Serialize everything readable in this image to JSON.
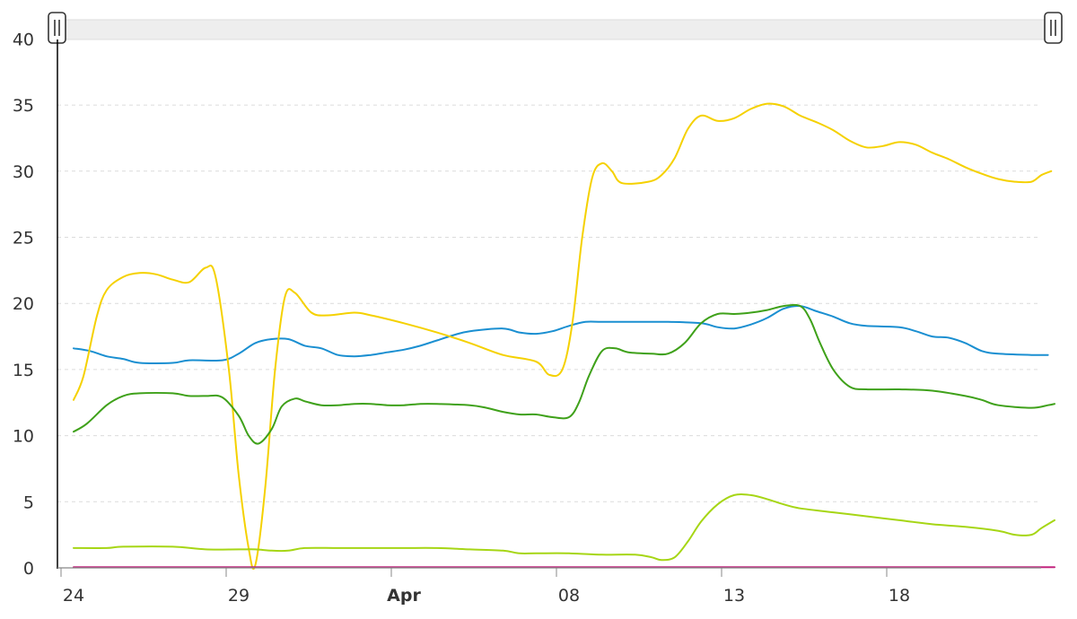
{
  "chart_data": {
    "type": "line",
    "ylim": [
      0,
      40
    ],
    "y_ticks": [
      "0",
      "5",
      "10",
      "15",
      "20",
      "25",
      "30",
      "35",
      "40"
    ],
    "x_domain_days": [
      "Mar 24",
      "Apr 22"
    ],
    "x_ticks": [
      {
        "label": "24",
        "day": 0,
        "bold": false
      },
      {
        "label": "29",
        "day": 5,
        "bold": false
      },
      {
        "label": "Apr",
        "day": 10,
        "bold": true
      },
      {
        "label": "08",
        "day": 15,
        "bold": false
      },
      {
        "label": "13",
        "day": 20,
        "bold": false
      },
      {
        "label": "18",
        "day": 25,
        "bold": false
      }
    ],
    "grid": true,
    "colors": {
      "blue": "#1a8fd1",
      "yellow": "#f5d100",
      "green": "#3fa11a",
      "lime": "#a6d615",
      "magenta": "#c2257e"
    },
    "series": [
      {
        "color": "#1a8fd1",
        "points": [
          [
            0,
            16.6
          ],
          [
            0.5,
            16.4
          ],
          [
            1,
            16
          ],
          [
            1.5,
            15.8
          ],
          [
            2,
            15.5
          ],
          [
            3,
            15.5
          ],
          [
            3.5,
            15.7
          ],
          [
            4.5,
            15.7
          ],
          [
            5,
            16.2
          ],
          [
            5.5,
            17
          ],
          [
            6,
            17.3
          ],
          [
            6.5,
            17.3
          ],
          [
            7,
            16.8
          ],
          [
            7.5,
            16.6
          ],
          [
            8,
            16.1
          ],
          [
            8.5,
            16
          ],
          [
            9,
            16.1
          ],
          [
            9.5,
            16.3
          ],
          [
            10,
            16.5
          ],
          [
            10.5,
            16.8
          ],
          [
            11,
            17.2
          ],
          [
            11.5,
            17.6
          ],
          [
            12,
            17.9
          ],
          [
            13,
            18.1
          ],
          [
            13.5,
            17.8
          ],
          [
            14,
            17.7
          ],
          [
            14.5,
            17.9
          ],
          [
            15,
            18.3
          ],
          [
            15.5,
            18.6
          ],
          [
            16,
            18.6
          ],
          [
            17,
            18.6
          ],
          [
            18,
            18.6
          ],
          [
            19,
            18.5
          ],
          [
            19.5,
            18.2
          ],
          [
            20,
            18.1
          ],
          [
            20.5,
            18.4
          ],
          [
            21,
            18.9
          ],
          [
            21.5,
            19.6
          ],
          [
            22,
            19.8
          ],
          [
            22.5,
            19.4
          ],
          [
            23,
            19
          ],
          [
            23.5,
            18.5
          ],
          [
            24,
            18.3
          ],
          [
            25,
            18.2
          ],
          [
            25.5,
            17.9
          ],
          [
            26,
            17.5
          ],
          [
            26.5,
            17.4
          ],
          [
            27,
            17
          ],
          [
            27.5,
            16.4
          ],
          [
            28,
            16.2
          ],
          [
            29,
            16.1
          ],
          [
            29.5,
            16.1
          ]
        ]
      },
      {
        "color": "#f5d100",
        "points": [
          [
            0,
            12.7
          ],
          [
            0.3,
            14.5
          ],
          [
            0.7,
            19
          ],
          [
            1,
            21
          ],
          [
            1.5,
            22
          ],
          [
            2,
            22.3
          ],
          [
            2.5,
            22.2
          ],
          [
            3,
            21.8
          ],
          [
            3.5,
            21.6
          ],
          [
            4,
            22.7
          ],
          [
            4.3,
            22
          ],
          [
            4.7,
            15
          ],
          [
            5,
            7
          ],
          [
            5.3,
            1.5
          ],
          [
            5.5,
            0.2
          ],
          [
            5.8,
            6
          ],
          [
            6.1,
            15
          ],
          [
            6.4,
            20.5
          ],
          [
            6.7,
            20.8
          ],
          [
            7.2,
            19.3
          ],
          [
            7.7,
            19.1
          ],
          [
            8.5,
            19.3
          ],
          [
            9,
            19.1
          ],
          [
            10,
            18.5
          ],
          [
            11,
            17.8
          ],
          [
            12,
            17
          ],
          [
            13,
            16.1
          ],
          [
            14,
            15.6
          ],
          [
            14.4,
            14.6
          ],
          [
            14.8,
            15
          ],
          [
            15.1,
            18.5
          ],
          [
            15.4,
            25
          ],
          [
            15.7,
            29.5
          ],
          [
            16,
            30.6
          ],
          [
            16.3,
            30
          ],
          [
            16.6,
            29.1
          ],
          [
            17.4,
            29.2
          ],
          [
            17.8,
            29.7
          ],
          [
            18.2,
            31
          ],
          [
            18.6,
            33.2
          ],
          [
            19,
            34.2
          ],
          [
            19.5,
            33.8
          ],
          [
            20,
            34
          ],
          [
            20.5,
            34.7
          ],
          [
            21,
            35.1
          ],
          [
            21.5,
            34.9
          ],
          [
            22,
            34.2
          ],
          [
            22.5,
            33.7
          ],
          [
            23,
            33.1
          ],
          [
            23.5,
            32.3
          ],
          [
            24,
            31.8
          ],
          [
            24.5,
            31.9
          ],
          [
            25,
            32.2
          ],
          [
            25.5,
            32
          ],
          [
            26,
            31.4
          ],
          [
            26.5,
            30.9
          ],
          [
            27,
            30.3
          ],
          [
            27.5,
            29.8
          ],
          [
            28,
            29.4
          ],
          [
            28.5,
            29.2
          ],
          [
            29,
            29.2
          ],
          [
            29.3,
            29.7
          ],
          [
            29.6,
            30
          ]
        ]
      },
      {
        "color": "#3fa11a",
        "points": [
          [
            0,
            10.3
          ],
          [
            0.4,
            10.9
          ],
          [
            1,
            12.3
          ],
          [
            1.5,
            13
          ],
          [
            2,
            13.2
          ],
          [
            3,
            13.2
          ],
          [
            3.5,
            13
          ],
          [
            4,
            13
          ],
          [
            4.5,
            12.9
          ],
          [
            5,
            11.5
          ],
          [
            5.3,
            10
          ],
          [
            5.6,
            9.4
          ],
          [
            6,
            10.5
          ],
          [
            6.3,
            12.2
          ],
          [
            6.7,
            12.8
          ],
          [
            7,
            12.6
          ],
          [
            7.5,
            12.3
          ],
          [
            8,
            12.3
          ],
          [
            8.5,
            12.4
          ],
          [
            9,
            12.4
          ],
          [
            9.5,
            12.3
          ],
          [
            10,
            12.3
          ],
          [
            10.5,
            12.4
          ],
          [
            11,
            12.4
          ],
          [
            12,
            12.3
          ],
          [
            12.5,
            12.1
          ],
          [
            13,
            11.8
          ],
          [
            13.5,
            11.6
          ],
          [
            14,
            11.6
          ],
          [
            14.5,
            11.4
          ],
          [
            15,
            11.4
          ],
          [
            15.3,
            12.5
          ],
          [
            15.6,
            14.5
          ],
          [
            16,
            16.4
          ],
          [
            16.4,
            16.6
          ],
          [
            16.8,
            16.3
          ],
          [
            17.5,
            16.2
          ],
          [
            18,
            16.2
          ],
          [
            18.5,
            17
          ],
          [
            19,
            18.5
          ],
          [
            19.5,
            19.2
          ],
          [
            20,
            19.2
          ],
          [
            20.5,
            19.3
          ],
          [
            21,
            19.5
          ],
          [
            21.5,
            19.8
          ],
          [
            22,
            19.8
          ],
          [
            22.3,
            18.8
          ],
          [
            22.6,
            17
          ],
          [
            23,
            15
          ],
          [
            23.5,
            13.7
          ],
          [
            24,
            13.5
          ],
          [
            25,
            13.5
          ],
          [
            26,
            13.4
          ],
          [
            27,
            13
          ],
          [
            27.5,
            12.7
          ],
          [
            28,
            12.3
          ],
          [
            29,
            12.1
          ],
          [
            29.5,
            12.3
          ],
          [
            29.7,
            12.4
          ]
        ]
      },
      {
        "color": "#a6d615",
        "points": [
          [
            0,
            1.5
          ],
          [
            1,
            1.5
          ],
          [
            1.5,
            1.6
          ],
          [
            3,
            1.6
          ],
          [
            4,
            1.4
          ],
          [
            5,
            1.4
          ],
          [
            5.5,
            1.4
          ],
          [
            6,
            1.3
          ],
          [
            6.5,
            1.3
          ],
          [
            7,
            1.5
          ],
          [
            8,
            1.5
          ],
          [
            9,
            1.5
          ],
          [
            10,
            1.5
          ],
          [
            11,
            1.5
          ],
          [
            12,
            1.4
          ],
          [
            13,
            1.3
          ],
          [
            13.5,
            1.1
          ],
          [
            14,
            1.1
          ],
          [
            15,
            1.1
          ],
          [
            16,
            1
          ],
          [
            17,
            1
          ],
          [
            17.5,
            0.8
          ],
          [
            17.8,
            0.6
          ],
          [
            18.2,
            0.8
          ],
          [
            18.6,
            2
          ],
          [
            19,
            3.5
          ],
          [
            19.5,
            4.8
          ],
          [
            20,
            5.5
          ],
          [
            20.5,
            5.5
          ],
          [
            21,
            5.2
          ],
          [
            21.5,
            4.8
          ],
          [
            22,
            4.5
          ],
          [
            23,
            4.2
          ],
          [
            24,
            3.9
          ],
          [
            25,
            3.6
          ],
          [
            26,
            3.3
          ],
          [
            27,
            3.1
          ],
          [
            28,
            2.8
          ],
          [
            28.5,
            2.5
          ],
          [
            29,
            2.5
          ],
          [
            29.3,
            3
          ],
          [
            29.7,
            3.6
          ]
        ]
      },
      {
        "color": "#c2257e",
        "points": [
          [
            0,
            0.05
          ],
          [
            29.7,
            0.05
          ]
        ]
      }
    ]
  }
}
